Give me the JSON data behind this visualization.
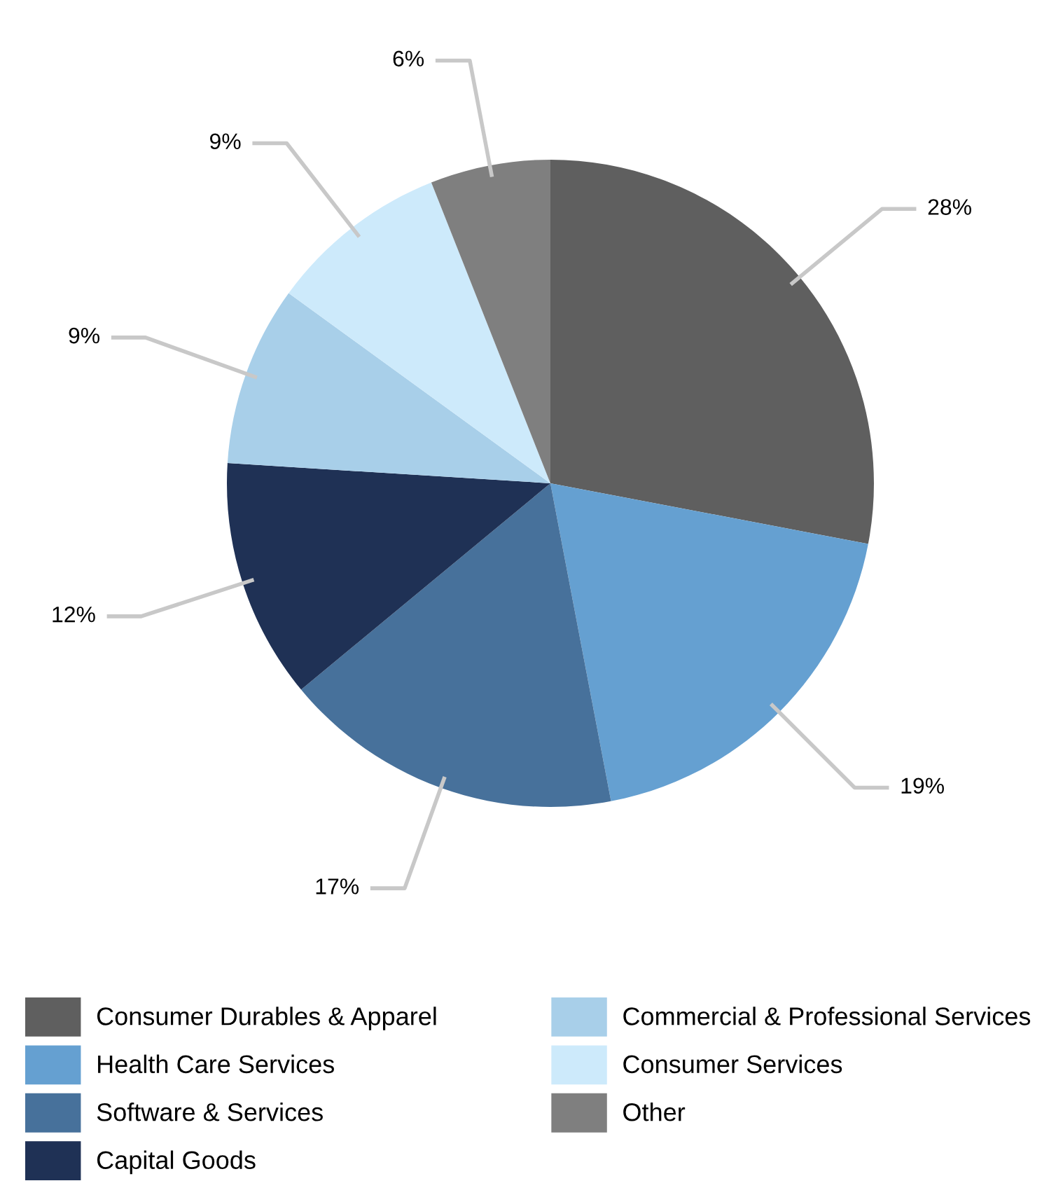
{
  "chart_data": {
    "type": "pie",
    "categories": [
      "Consumer Durables & Apparel",
      "Health Care Services",
      "Software & Services",
      "Capital Goods",
      "Commercial & Professional Services",
      "Consumer Services",
      "Other"
    ],
    "values": [
      28,
      19,
      17,
      12,
      9,
      9,
      6
    ],
    "value_labels": [
      "28%",
      "19%",
      "17%",
      "12%",
      "9%",
      "9%",
      "6%"
    ],
    "colors": [
      "#5f5f5f",
      "#65a0d1",
      "#47719b",
      "#1f3155",
      "#a8cfe9",
      "#cdeafb",
      "#7f7f7f"
    ],
    "legend": "bottom"
  }
}
